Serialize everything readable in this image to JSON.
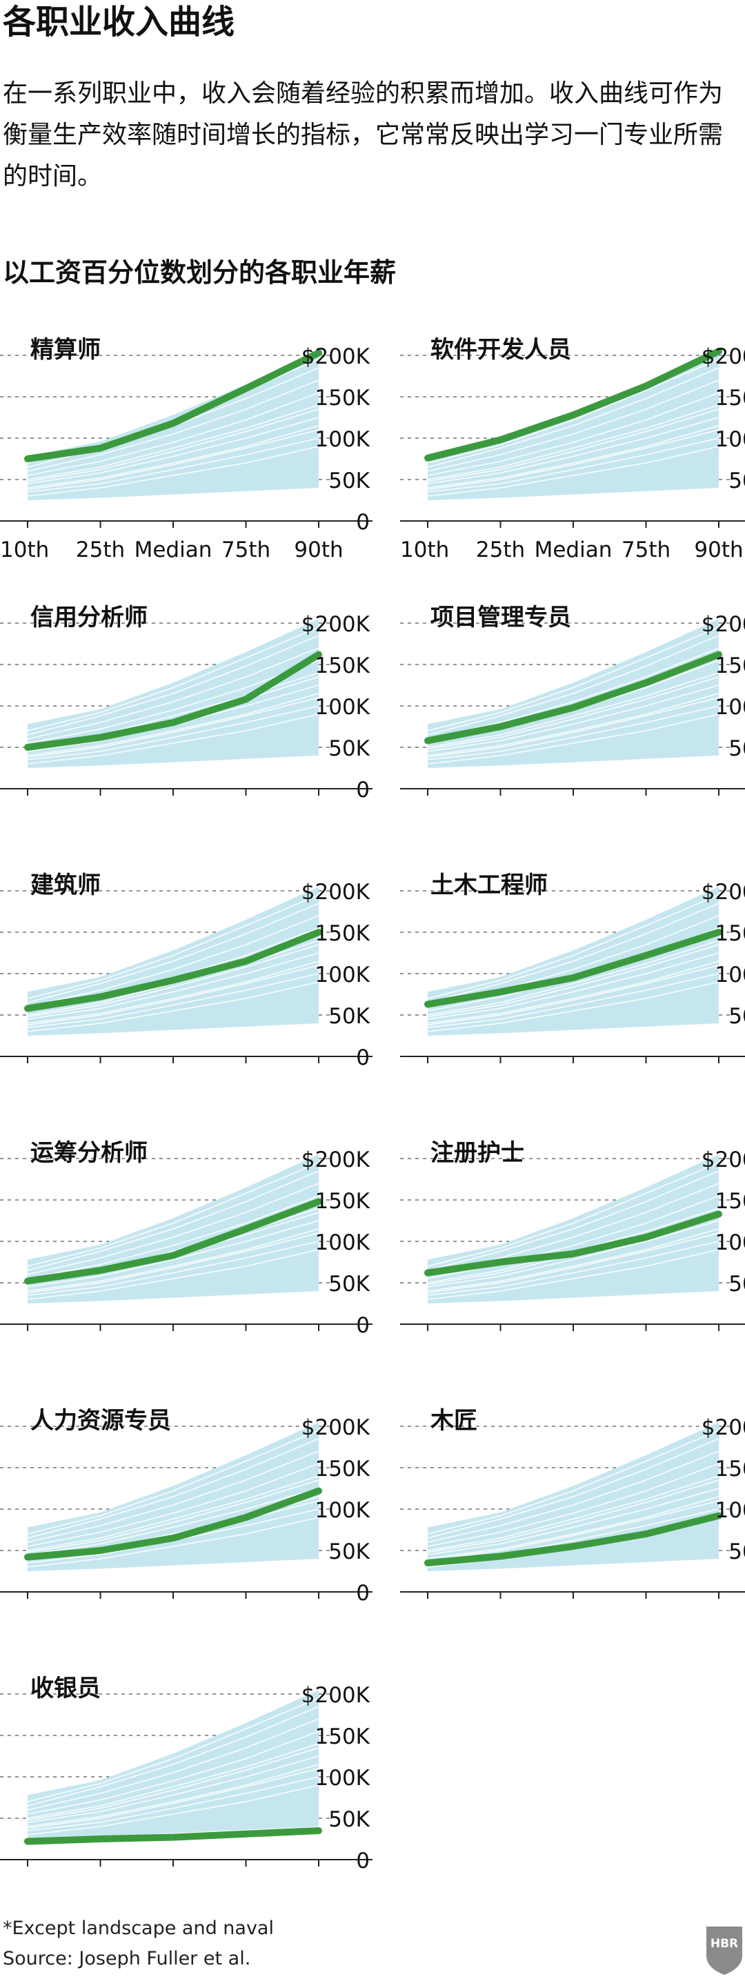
{
  "title": "各职业收入曲线",
  "intro": "在一系列职业中，收入会随着经验的积累而增加。收入曲线可作为衡量生产效率随时间增长的指标，它常常反映出学习一门专业所需的时间。",
  "subtitle": "以工资百分位数划分的各职业年薪",
  "footnote": "*Except landscape and naval",
  "source": "Source: Joseph Fuller et al.",
  "logo_text": "HBR",
  "colors": {
    "highlight": "#3c9a3e",
    "band": "#c6e6ef",
    "grid": "#555555",
    "axis": "#222222"
  },
  "chart_data": {
    "type": "line",
    "x": [
      "10th",
      "25th",
      "Median",
      "75th",
      "90th"
    ],
    "y_ticks": [
      "$200K",
      "150K",
      "100K",
      "50K",
      "0"
    ],
    "y_tick_values": [
      200,
      150,
      100,
      50,
      0
    ],
    "ylim": [
      0,
      200
    ],
    "background_band": {
      "lower": [
        25,
        28,
        32,
        36,
        40
      ],
      "upper": [
        78,
        96,
        128,
        165,
        205
      ]
    },
    "background_lines": [
      [
        30,
        40,
        55,
        70,
        90
      ],
      [
        35,
        45,
        62,
        80,
        100
      ],
      [
        40,
        52,
        70,
        90,
        115
      ],
      [
        45,
        58,
        78,
        100,
        125
      ],
      [
        50,
        65,
        88,
        112,
        140
      ],
      [
        55,
        72,
        95,
        122,
        155
      ],
      [
        60,
        80,
        105,
        135,
        170
      ],
      [
        65,
        88,
        115,
        148,
        185
      ],
      [
        70,
        92,
        122,
        158,
        195
      ],
      [
        38,
        50,
        68,
        88,
        110
      ],
      [
        48,
        62,
        84,
        108,
        135
      ]
    ],
    "panels": [
      {
        "name": "精算师",
        "values": [
          75,
          88,
          118,
          160,
          203
        ]
      },
      {
        "name": "软件开发人员",
        "values": [
          76,
          98,
          128,
          163,
          205
        ]
      },
      {
        "name": "信用分析师",
        "values": [
          50,
          62,
          80,
          108,
          162
        ]
      },
      {
        "name": "项目管理专员",
        "values": [
          58,
          75,
          98,
          128,
          162
        ]
      },
      {
        "name": "建筑师",
        "values": [
          58,
          72,
          92,
          115,
          150
        ]
      },
      {
        "name": "土木工程师",
        "values": [
          63,
          78,
          95,
          122,
          150
        ]
      },
      {
        "name": "运筹分析师",
        "values": [
          52,
          65,
          83,
          115,
          148
        ]
      },
      {
        "name": "注册护士",
        "values": [
          62,
          75,
          85,
          105,
          133
        ]
      },
      {
        "name": "人力资源专员",
        "values": [
          42,
          50,
          65,
          90,
          122
        ]
      },
      {
        "name": "木匠",
        "values": [
          35,
          43,
          55,
          70,
          92
        ]
      },
      {
        "name": "收银员",
        "values": [
          22,
          25,
          27,
          31,
          35
        ]
      }
    ]
  }
}
